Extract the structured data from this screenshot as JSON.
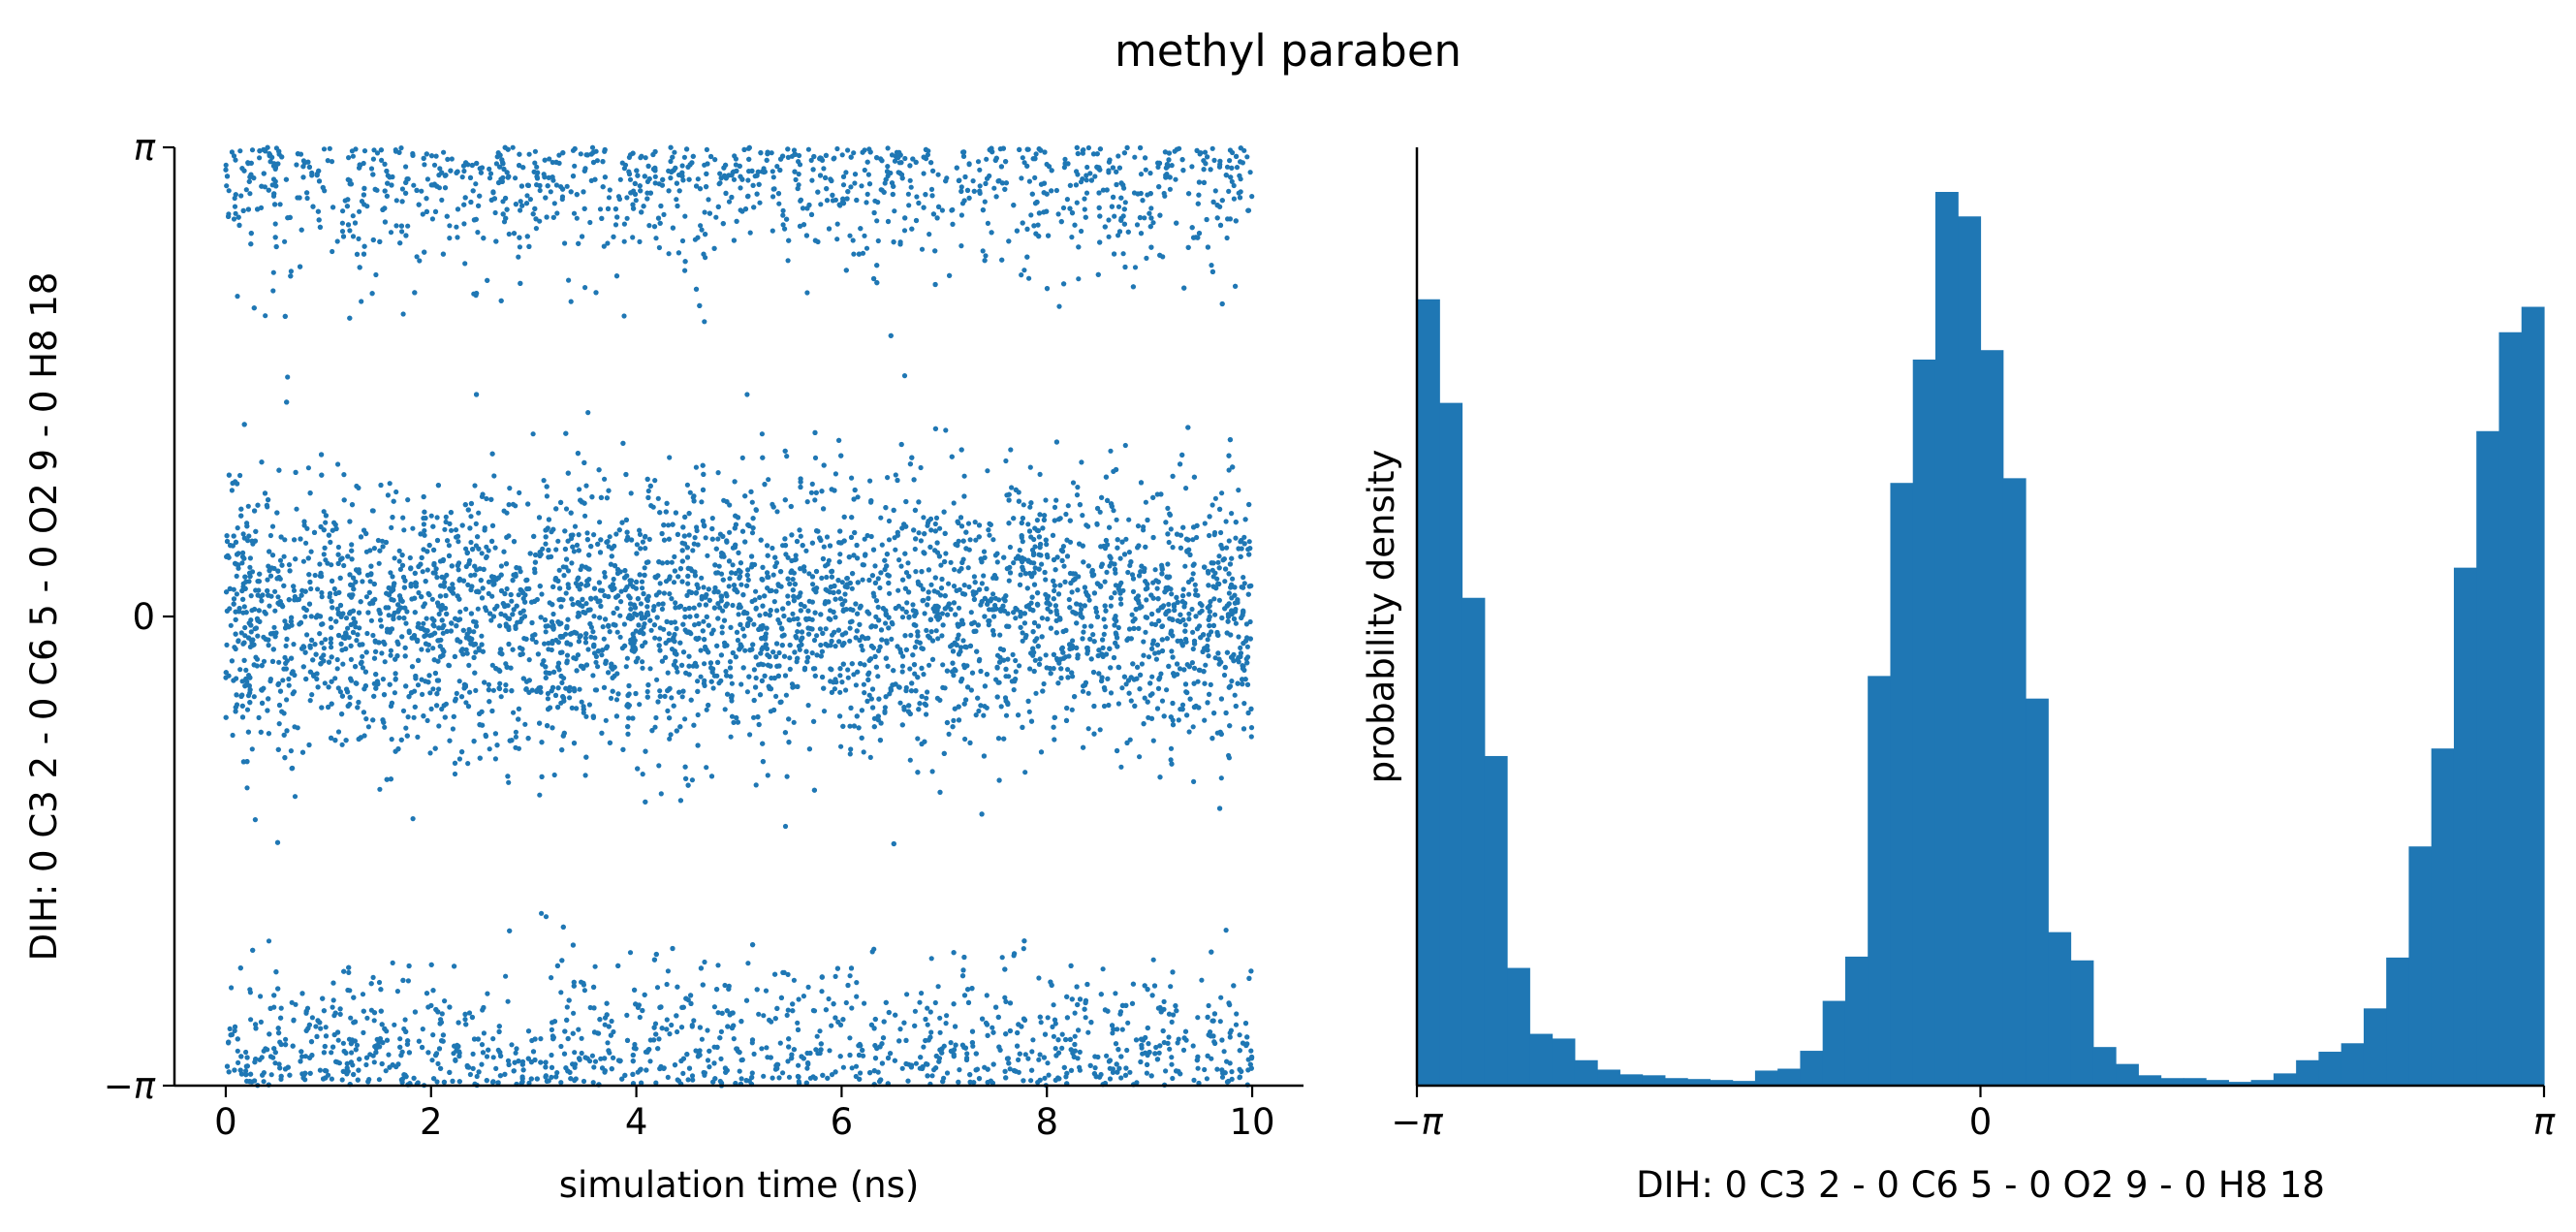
{
  "suptitle": "methyl paraben",
  "colors": {
    "series": "#1f77b4",
    "axis": "#000000",
    "background": "#ffffff"
  },
  "chart_data": [
    {
      "type": "scatter",
      "xlabel": "simulation time (ns)",
      "ylabel": "DIH:  0 C3 2 -  0 C6 5 -  0 O2 9 -  0 H8 18",
      "xlim": [
        -0.5,
        10.5
      ],
      "ylim": [
        -3.14159,
        3.14159
      ],
      "xticks": [
        0,
        2,
        4,
        6,
        8,
        10
      ],
      "xtick_labels": [
        "0",
        "2",
        "4",
        "6",
        "8",
        "10"
      ],
      "yticks": [
        -3.14159,
        0,
        3.14159
      ],
      "ytick_labels": [
        "−π",
        "0",
        "π"
      ],
      "grid": false,
      "series": [
        {
          "description": "dihedral angle (rad) vs simulation time (ns); ~10000 frames over 0–10 ns",
          "t_range": [
            0,
            10
          ],
          "populations": [
            {
              "center": 0.0,
              "spread": 0.45,
              "fraction": 0.62
            },
            {
              "center": 3.14159,
              "spread": 0.38,
              "fraction": 0.19
            },
            {
              "center": -3.14159,
              "spread": 0.38,
              "fraction": 0.19
            }
          ]
        }
      ]
    },
    {
      "type": "bar",
      "xlabel": "DIH:  0 C3 2 -  0 C6 5 -  0 O2 9 -  0 H8 18",
      "ylabel": "probability density",
      "xlim": [
        -3.14159,
        3.14159
      ],
      "xticks": [
        -3.14159,
        0,
        3.14159
      ],
      "xtick_labels": [
        "−π",
        "0",
        "π"
      ],
      "y_ticks_shown": false,
      "grid": false,
      "bins": 50,
      "bin_edges_range": [
        -3.14159,
        3.14159
      ],
      "values": [
        0.835,
        0.725,
        0.518,
        0.35,
        0.125,
        0.055,
        0.05,
        0.027,
        0.017,
        0.012,
        0.011,
        0.008,
        0.007,
        0.006,
        0.005,
        0.016,
        0.018,
        0.037,
        0.09,
        0.137,
        0.435,
        0.64,
        0.771,
        0.949,
        0.923,
        0.781,
        0.645,
        0.411,
        0.163,
        0.133,
        0.041,
        0.023,
        0.011,
        0.008,
        0.008,
        0.006,
        0.004,
        0.006,
        0.013,
        0.027,
        0.036,
        0.045,
        0.082,
        0.136,
        0.254,
        0.358,
        0.55,
        0.695,
        0.8,
        0.827
      ]
    }
  ]
}
